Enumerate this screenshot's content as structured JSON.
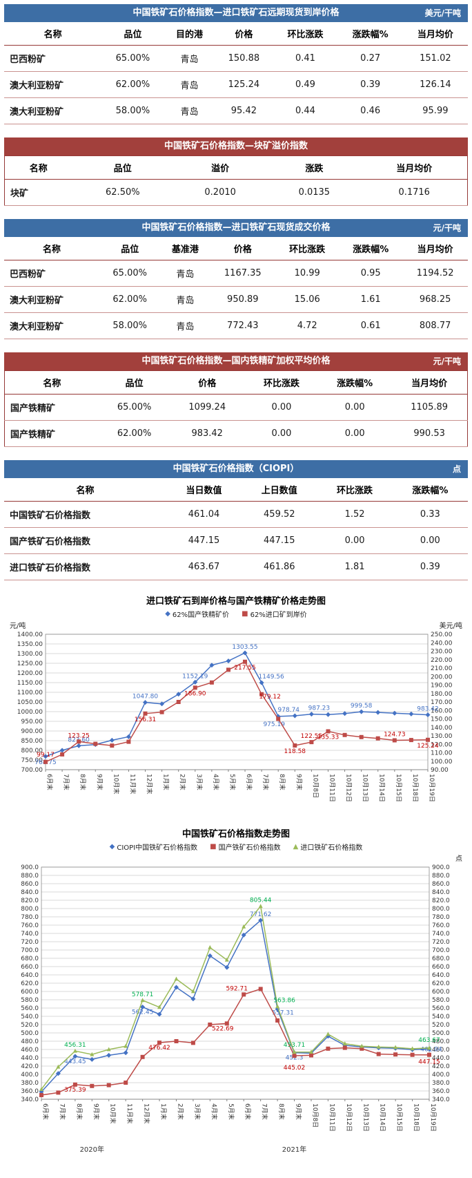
{
  "tables": [
    {
      "title": "中国铁矿石价格指数—进口铁矿石远期现货到岸价格",
      "unit": "美元/干吨",
      "accent": "#3D6EA5",
      "columns": [
        "名称",
        "品位",
        "目的港",
        "价格",
        "环比涨跌",
        "涨跌幅%",
        "当月均价"
      ],
      "rows": [
        [
          "巴西粉矿",
          "65.00%",
          "青岛",
          "150.88",
          "0.41",
          "0.27",
          "151.02"
        ],
        [
          "澳大利亚粉矿",
          "62.00%",
          "青岛",
          "125.24",
          "0.49",
          "0.39",
          "126.14"
        ],
        [
          "澳大利亚粉矿",
          "58.00%",
          "青岛",
          "95.42",
          "0.44",
          "0.46",
          "95.99"
        ]
      ]
    },
    {
      "title": "中国铁矿石价格指数—块矿溢价指数",
      "unit": "",
      "accent": "#A2403C",
      "columns": [
        "名称",
        "品位",
        "溢价",
        "涨跌",
        "当月均价"
      ],
      "rows": [
        [
          "块矿",
          "62.50%",
          "0.2010",
          "0.0135",
          "0.1716"
        ]
      ]
    },
    {
      "title": "中国铁矿石价格指数—进口铁矿石现货成交价格",
      "unit": "元/干吨",
      "accent": "#3D6EA5",
      "columns": [
        "名称",
        "品位",
        "基准港",
        "价格",
        "环比涨跌",
        "涨跌幅%",
        "当月均价"
      ],
      "rows": [
        [
          "巴西粉矿",
          "65.00%",
          "青岛",
          "1167.35",
          "10.99",
          "0.95",
          "1194.52"
        ],
        [
          "澳大利亚粉矿",
          "62.00%",
          "青岛",
          "950.89",
          "15.06",
          "1.61",
          "968.25"
        ],
        [
          "澳大利亚粉矿",
          "58.00%",
          "青岛",
          "772.43",
          "4.72",
          "0.61",
          "808.77"
        ]
      ]
    },
    {
      "title": "中国铁矿石价格指数—国内铁精矿加权平均价格",
      "unit": "元/干吨",
      "accent": "#A2403C",
      "columns": [
        "名称",
        "品位",
        "价格",
        "环比涨跌",
        "涨跌幅%",
        "当月均价"
      ],
      "rows": [
        [
          "国产铁精矿",
          "65.00%",
          "1099.24",
          "0.00",
          "0.00",
          "1105.89"
        ],
        [
          "国产铁精矿",
          "62.00%",
          "983.42",
          "0.00",
          "0.00",
          "990.53"
        ]
      ]
    },
    {
      "title": "中国铁矿石价格指数（CIOPI）",
      "unit": "点",
      "accent": "#3D6EA5",
      "columns": [
        "名称",
        "当日数值",
        "上日数值",
        "环比涨跌",
        "涨跌幅%"
      ],
      "rows": [
        [
          "中国铁矿石价格指数",
          "461.04",
          "459.52",
          "1.52",
          "0.33"
        ],
        [
          "国产铁矿石价格指数",
          "447.15",
          "447.15",
          "0.00",
          "0.00"
        ],
        [
          "进口铁矿石价格指数",
          "463.67",
          "461.86",
          "1.81",
          "0.39"
        ]
      ]
    }
  ],
  "chart_data": [
    {
      "id": "chart-import-vs-domestic",
      "type": "line",
      "title": "进口铁矿石到岸价格与国产铁精矿价格走势图",
      "unit_left": "元/吨",
      "unit_right": "美元/吨",
      "left_axis": {
        "min": 700,
        "max": 1400,
        "step": 50,
        "dec": 2
      },
      "right_axis": {
        "min": 90,
        "max": 250,
        "step": 10,
        "dec": 2
      },
      "grid": true,
      "legend_position": "top",
      "categories": [
        "6月末",
        "7月末",
        "8月末",
        "9月末",
        "10月末",
        "11月末",
        "12月末",
        "1月末",
        "2月末",
        "3月末",
        "4月末",
        "5月末",
        "6月末",
        "7月末",
        "8月末",
        "9月末",
        "10月8日",
        "10月11日",
        "10月12日",
        "10月13日",
        "10月14日",
        "10月15日",
        "10月18日",
        "10月19日"
      ],
      "series": [
        {
          "name": "62%国产铁精矿价",
          "color": "#4472C4",
          "marker": "diamond",
          "axis": "left",
          "values": [
            768.75,
            800,
            823.6,
            830,
            852,
            870,
            1047.8,
            1040,
            1090,
            1152.19,
            1240,
            1262,
            1303.55,
            1149.56,
            975.19,
            978.74,
            987.23,
            985,
            990,
            999.58,
            996,
            992,
            988,
            983.42
          ],
          "labels": {
            "0": {
              "t": "768.75",
              "dy": 17
            },
            "2": "823.60",
            "6": "1047.80",
            "9": "1152.19",
            "12": "1303.55",
            "13": {
              "t": "1149.56",
              "dx": 14
            },
            "14": {
              "t": "975.19",
              "dy": 20,
              "dx": -6
            },
            "15": {
              "t": "978.74",
              "dx": -9
            },
            "16": {
              "t": "987.23",
              "dx": 11
            },
            "19": "999.58",
            "23": "983.42"
          }
        },
        {
          "name": "62%进口矿到岸价",
          "color": "#BE4B48",
          "label_color": "#C00000",
          "marker": "square",
          "axis": "right",
          "values": [
            99.17,
            108,
            123.25,
            120.5,
            118.5,
            123,
            156.31,
            158,
            170,
            186.9,
            193,
            208,
            217.55,
            179.12,
            150,
            118.58,
            122.55,
            135.33,
            131,
            128.5,
            127,
            124.73,
            125,
            125.24
          ],
          "labels": {
            "0": {
              "t": "99.17",
              "dy": -2
            },
            "2": "123.25",
            "6": {
              "t": "156.31",
              "dy": 17
            },
            "9": {
              "t": "186.90",
              "dy": 17
            },
            "12": {
              "t": "217.55",
              "dy": 17
            },
            "13": {
              "t": "179.12",
              "dy": 12,
              "dx": 12
            },
            "15": {
              "t": "118.58",
              "dy": 17
            },
            "16": "122.55",
            "17": {
              "t": "135.33",
              "dy": 17
            },
            "21": "124.73",
            "23": {
              "t": "125.24",
              "dy": 17
            }
          }
        }
      ]
    },
    {
      "id": "chart-ciopi-trend",
      "type": "line",
      "title": "中国铁矿石价格指数走势图",
      "unit_left": "",
      "unit_right": "点",
      "left_axis": {
        "min": 340,
        "max": 900,
        "step": 20,
        "dec": 1
      },
      "right_axis": {
        "min": 340,
        "max": 900,
        "step": 20,
        "dec": 1
      },
      "grid": true,
      "legend_position": "top",
      "categories": [
        "6月末",
        "7月末",
        "8月末",
        "9月末",
        "10月末",
        "11月末",
        "12月末",
        "1月末",
        "2月末",
        "3月末",
        "4月末",
        "5月末",
        "6月末",
        "7月末",
        "8月末",
        "9月末",
        "10月8日",
        "10月11日",
        "10月12日",
        "10月13日",
        "10月14日",
        "10月15日",
        "10月18日",
        "10月19日"
      ],
      "year_groups": [
        {
          "label": "2020年",
          "span": [
            0,
            6
          ]
        },
        {
          "label": "2021年",
          "span": [
            7,
            23
          ]
        }
      ],
      "series": [
        {
          "name": "CIOPI中国铁矿石价格指数",
          "color": "#4472C4",
          "marker": "diamond",
          "axis": "left",
          "values": [
            358,
            402,
            443.45,
            436,
            446,
            452,
            562.45,
            545,
            610,
            582,
            686,
            658,
            736,
            771.62,
            557.31,
            452.3,
            451,
            492,
            470,
            466,
            464,
            463,
            459.52,
            461.04
          ],
          "labels": {
            "2": {
              "t": "443.45",
              "dy": 16
            },
            "6": {
              "t": "562.45",
              "dy": 16
            },
            "13": "771.62",
            "14": {
              "t": "557.31",
              "dy": 14,
              "dx": 8
            },
            "15": {
              "t": "452.3",
              "dy": 16
            },
            "23": {
              "t": "461.04",
              "dy": 9,
              "dx": 3
            }
          }
        },
        {
          "name": "国产铁矿石价格指数",
          "color": "#BE4B48",
          "label_color": "#C00000",
          "marker": "square",
          "axis": "left",
          "values": [
            350,
            356,
            375.39,
            372,
            374,
            380,
            442,
            476.42,
            480,
            476,
            520,
            522.69,
            592.71,
            606,
            530,
            445.02,
            446,
            462,
            464,
            462,
            449,
            448,
            447.15,
            447.15
          ],
          "labels": {
            "2": {
              "t": "375.39",
              "dy": 16
            },
            "7": {
              "t": "476.42",
              "dy": 16
            },
            "11": {
              "t": "522.69",
              "dy": 16,
              "dx": -6
            },
            "12": {
              "t": "592.71",
              "dx": -10
            },
            "15": {
              "t": "445.02",
              "dy": 26
            },
            "23": {
              "t": "447.15",
              "dy": 19
            }
          }
        },
        {
          "name": "进口铁矿石价格指数",
          "color": "#9BBB59",
          "label_color": "#00B050",
          "marker": "triangle",
          "axis": "left",
          "values": [
            364,
            418,
            456.31,
            448,
            460,
            468,
            578.71,
            562,
            630,
            600,
            706,
            676,
            756,
            805.44,
            563.86,
            453.71,
            454,
            497,
            474,
            468,
            466,
            465,
            461.86,
            463.67
          ],
          "labels": {
            "2": "456.31",
            "6": "578.71",
            "13": "805.44",
            "14": {
              "t": "563.86",
              "dx": 10
            },
            "15": {
              "t": "453.71",
              "dy": -2
            },
            "23": {
              "t": "463.67",
              "dy": -3
            }
          }
        }
      ]
    }
  ]
}
